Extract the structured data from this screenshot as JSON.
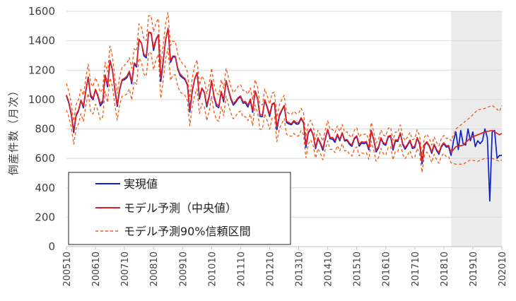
{
  "chart_data": {
    "type": "line",
    "title": "",
    "xlabel": "",
    "ylabel": "倒産件数（月次）",
    "ylim": [
      0,
      1600
    ],
    "y_ticks": [
      0,
      200,
      400,
      600,
      800,
      1000,
      1200,
      1400,
      1600
    ],
    "x_ticks": [
      "200510",
      "200610",
      "200710",
      "200810",
      "200910",
      "201010",
      "201110",
      "201210",
      "201310",
      "201410",
      "201510",
      "201610",
      "201710",
      "201810",
      "201910",
      "202010"
    ],
    "x_range": [
      "200510",
      "202010"
    ],
    "grid": "horizontal",
    "forecast_shading": {
      "from": "201901",
      "to": "202010",
      "color": "#ebebeb"
    },
    "legend": {
      "position": "bottom-left",
      "entries": [
        {
          "label": "実現値",
          "color": "#0b1fd1",
          "style": "solid"
        },
        {
          "label": "モデル予測（中央値）",
          "color": "#e02020",
          "style": "solid"
        },
        {
          "label": "モデル予測90%信頼区間",
          "color": "#f05a14",
          "style": "dashed"
        }
      ]
    },
    "anchors": [
      [
        "200510",
        1000
      ],
      [
        "200601",
        870
      ],
      [
        "200604",
        920
      ],
      [
        "200607",
        1100
      ],
      [
        "200610",
        1000
      ],
      [
        "200701",
        1050
      ],
      [
        "200704",
        1200
      ],
      [
        "200707",
        1000
      ],
      [
        "200710",
        1150
      ],
      [
        "200801",
        1200
      ],
      [
        "200804",
        1300
      ],
      [
        "200807",
        1350
      ],
      [
        "200810",
        1440
      ],
      [
        "200901",
        1300
      ],
      [
        "200904",
        1350
      ],
      [
        "200907",
        1250
      ],
      [
        "200910",
        1150
      ],
      [
        "201001",
        1050
      ],
      [
        "201004",
        1100
      ],
      [
        "201007",
        1000
      ],
      [
        "201010",
        1050
      ],
      [
        "201101",
        1000
      ],
      [
        "201104",
        1050
      ],
      [
        "201107",
        980
      ],
      [
        "201110",
        1000
      ],
      [
        "201201",
        1000
      ],
      [
        "201204",
        960
      ],
      [
        "201207",
        920
      ],
      [
        "201210",
        950
      ],
      [
        "201301",
        920
      ],
      [
        "201304",
        880
      ],
      [
        "201307",
        820
      ],
      [
        "201310",
        860
      ],
      [
        "201401",
        800
      ],
      [
        "201404",
        720
      ],
      [
        "201407",
        680
      ],
      [
        "201410",
        750
      ],
      [
        "201501",
        760
      ],
      [
        "201504",
        720
      ],
      [
        "201507",
        700
      ],
      [
        "201510",
        720
      ],
      [
        "201601",
        720
      ],
      [
        "201604",
        700
      ],
      [
        "201607",
        680
      ],
      [
        "201610",
        720
      ],
      [
        "201701",
        740
      ],
      [
        "201704",
        700
      ],
      [
        "201707",
        680
      ],
      [
        "201710",
        700
      ],
      [
        "201801",
        680
      ],
      [
        "201804",
        660
      ],
      [
        "201807",
        650
      ],
      [
        "201810",
        680
      ],
      [
        "201812",
        690
      ]
    ],
    "series": [
      {
        "name": "実現値",
        "color": "#0b1fd1",
        "forecast_period": [
          [
            "201901",
            620
          ],
          [
            "201902",
            720
          ],
          [
            "201903",
            780
          ],
          [
            "201904",
            660
          ],
          [
            "201905",
            790
          ],
          [
            "201906",
            700
          ],
          [
            "201907",
            690
          ],
          [
            "201908",
            800
          ],
          [
            "201909",
            720
          ],
          [
            "201910",
            780
          ],
          [
            "201911",
            680
          ],
          [
            "201912",
            720
          ],
          [
            "202001",
            700
          ],
          [
            "202002",
            720
          ],
          [
            "202003",
            800
          ],
          [
            "202004",
            740
          ],
          [
            "202005",
            310
          ],
          [
            "202006",
            780
          ],
          [
            "202007",
            790
          ],
          [
            "202008",
            600
          ],
          [
            "202009",
            620
          ],
          [
            "202010",
            620
          ]
        ]
      },
      {
        "name": "モデル予測（中央値）",
        "color": "#e02020",
        "forecast_period": [
          [
            "201901",
            640
          ],
          [
            "201903",
            680
          ],
          [
            "201906",
            690
          ],
          [
            "201909",
            740
          ],
          [
            "201912",
            760
          ],
          [
            "202003",
            780
          ],
          [
            "202006",
            790
          ],
          [
            "202009",
            760
          ],
          [
            "202010",
            770
          ]
        ]
      },
      {
        "name": "モデル予測90%信頼区間 上限",
        "color": "#f05a14",
        "forecast_period": [
          [
            "201901",
            720
          ],
          [
            "201903",
            800
          ],
          [
            "201906",
            840
          ],
          [
            "201909",
            880
          ],
          [
            "201912",
            930
          ],
          [
            "202003",
            940
          ],
          [
            "202006",
            960
          ],
          [
            "202009",
            920
          ],
          [
            "202010",
            960
          ]
        ]
      },
      {
        "name": "モデル予測90%信頼区間 下限",
        "color": "#f05a14",
        "forecast_period": [
          [
            "201901",
            570
          ],
          [
            "201903",
            560
          ],
          [
            "201906",
            560
          ],
          [
            "201909",
            590
          ],
          [
            "201912",
            580
          ],
          [
            "202003",
            600
          ],
          [
            "202006",
            600
          ],
          [
            "202009",
            580
          ],
          [
            "202010",
            590
          ]
        ]
      }
    ]
  }
}
